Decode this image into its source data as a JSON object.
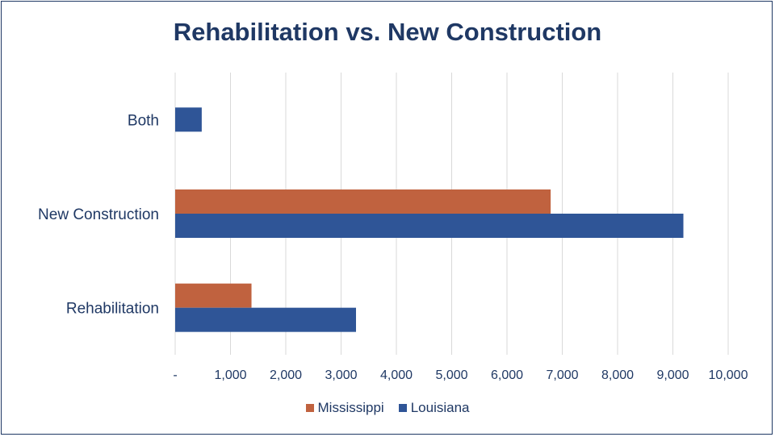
{
  "chart_data": {
    "type": "bar",
    "orientation": "horizontal",
    "title": "Rehabilitation vs. New Construction",
    "categories": [
      "Rehabilitation",
      "New Construction",
      "Both"
    ],
    "series": [
      {
        "name": "Mississippi",
        "color": "#c0623f",
        "values": [
          1380,
          6790,
          0
        ]
      },
      {
        "name": "Louisiana",
        "color": "#2f5597",
        "values": [
          3270,
          9190,
          480
        ]
      }
    ],
    "xlim": [
      0,
      10000
    ],
    "xticks": [
      0,
      1000,
      2000,
      3000,
      4000,
      5000,
      6000,
      7000,
      8000,
      9000,
      10000
    ],
    "xtick_labels": [
      "-",
      "1,000",
      "2,000",
      "3,000",
      "4,000",
      "5,000",
      "6,000",
      "7,000",
      "8,000",
      "9,000",
      "10,000"
    ],
    "grid": "vertical",
    "legend_position": "bottom",
    "text_color": "#1f3864"
  }
}
